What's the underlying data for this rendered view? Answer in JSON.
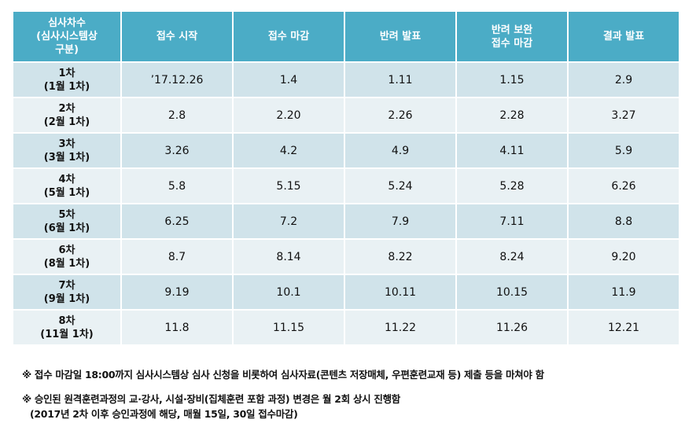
{
  "headers": [
    "심사차수\n(심사시스템상\n구분)",
    "접수 시작",
    "접수 마감",
    "반려 발표",
    "반려 보완\n접수 마감",
    "결과 발표"
  ],
  "rows": [
    [
      "1차\n(1월 1차)",
      "’17.12.26",
      "1.4",
      "1.11",
      "1.15",
      "2.9"
    ],
    [
      "2차\n(2월 1차)",
      "2.8",
      "2.20",
      "2.26",
      "2.28",
      "3.27"
    ],
    [
      "3차\n(3월 1차)",
      "3.26",
      "4.2",
      "4.9",
      "4.11",
      "5.9"
    ],
    [
      "4차\n(5월 1차)",
      "5.8",
      "5.15",
      "5.24",
      "5.28",
      "6.26"
    ],
    [
      "5차\n(6월 1차)",
      "6.25",
      "7.2",
      "7.9",
      "7.11",
      "8.8"
    ],
    [
      "6차\n(8월 1차)",
      "8.7",
      "8.14",
      "8.22",
      "8.24",
      "9.20"
    ],
    [
      "7차\n(9월 1차)",
      "9.19",
      "10.1",
      "10.11",
      "10.15",
      "11.9"
    ],
    [
      "8차\n(11월 1차)",
      "11.8",
      "11.15",
      "11.22",
      "11.26",
      "12.21"
    ]
  ],
  "notes": {
    "note1": "※ 접수 마감일 18:00까지 심사시스템상 심사 신청을 비롯하여 심사자료(콘텐츠 저장매체, 우편훈련교재 등) 제출 등을 마쳐야 함",
    "note2": "※ 승인된 원격훈련과정의 교·강사, 시설·장비(집체훈련 포함 과정) 변경은 월 2회 상시 진행함",
    "note2_sub": "(2017년 2차 이후 승인과정에 해당, 매월 15일, 30일 접수마감)"
  },
  "colors": {
    "header": "#4bacc6",
    "row_dark": "#d0e3ea",
    "row_light": "#e9f1f4"
  }
}
